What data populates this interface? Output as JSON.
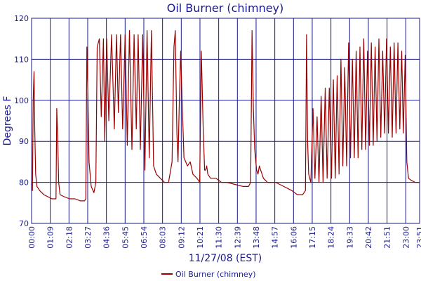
{
  "chart_data": {
    "type": "line",
    "title": "Oil Burner (chimney)",
    "xlabel": "11/27/08 (EST)",
    "ylabel": "Degrees F",
    "ylim": [
      70,
      120
    ],
    "yticks": [
      70,
      80,
      90,
      100,
      110,
      120
    ],
    "xlim_minutes": [
      0,
      1431
    ],
    "xticks": [
      "00:00",
      "01:09",
      "02:18",
      "03:27",
      "04:36",
      "05:45",
      "06:54",
      "08:03",
      "09:12",
      "10:21",
      "11:30",
      "12:39",
      "13:48",
      "14:57",
      "16:06",
      "17:15",
      "18:24",
      "19:33",
      "20:42",
      "21:51",
      "23:00",
      "23:51"
    ],
    "grid": true,
    "legend": "bottom-center",
    "series": [
      {
        "name": "Oil Burner (chimney)",
        "color": "#990000",
        "points": [
          [
            "00:00",
            80
          ],
          [
            "00:03",
            78
          ],
          [
            "00:06",
            100
          ],
          [
            "00:09",
            107
          ],
          [
            "00:11",
            95
          ],
          [
            "00:15",
            82
          ],
          [
            "00:20",
            79
          ],
          [
            "00:30",
            78
          ],
          [
            "00:45",
            77
          ],
          [
            "01:00",
            76.5
          ],
          [
            "01:15",
            76
          ],
          [
            "01:25",
            76
          ],
          [
            "01:30",
            76
          ],
          [
            "01:33",
            98
          ],
          [
            "01:36",
            92
          ],
          [
            "01:40",
            80
          ],
          [
            "01:45",
            77
          ],
          [
            "02:00",
            76.5
          ],
          [
            "02:20",
            76
          ],
          [
            "02:40",
            76
          ],
          [
            "03:00",
            75.5
          ],
          [
            "03:15",
            75.5
          ],
          [
            "03:20",
            76
          ],
          [
            "03:24",
            113
          ],
          [
            "03:28",
            100
          ],
          [
            "03:32",
            85
          ],
          [
            "03:40",
            79
          ],
          [
            "03:50",
            77.5
          ],
          [
            "03:57",
            80
          ],
          [
            "04:02",
            113
          ],
          [
            "04:10",
            115
          ],
          [
            "04:17",
            96
          ],
          [
            "04:25",
            115
          ],
          [
            "04:30",
            90
          ],
          [
            "04:37",
            115
          ],
          [
            "04:45",
            95
          ],
          [
            "04:55",
            116
          ],
          [
            "05:05",
            93
          ],
          [
            "05:13",
            116
          ],
          [
            "05:20",
            97
          ],
          [
            "05:28",
            116
          ],
          [
            "05:36",
            93
          ],
          [
            "05:45",
            116
          ],
          [
            "05:53",
            89
          ],
          [
            "06:01",
            117
          ],
          [
            "06:10",
            88
          ],
          [
            "06:18",
            116
          ],
          [
            "06:26",
            93
          ],
          [
            "06:33",
            116
          ],
          [
            "06:41",
            88
          ],
          [
            "06:50",
            116
          ],
          [
            "06:58",
            83
          ],
          [
            "07:06",
            117
          ],
          [
            "07:14",
            86
          ],
          [
            "07:22",
            117
          ],
          [
            "07:30",
            84
          ],
          [
            "07:40",
            82
          ],
          [
            "07:55",
            81
          ],
          [
            "08:10",
            80
          ],
          [
            "08:25",
            80
          ],
          [
            "08:38",
            85
          ],
          [
            "08:45",
            113
          ],
          [
            "08:50",
            117
          ],
          [
            "08:56",
            92
          ],
          [
            "09:00",
            85
          ],
          [
            "09:05",
            100
          ],
          [
            "09:10",
            112
          ],
          [
            "09:15",
            100
          ],
          [
            "09:22",
            86
          ],
          [
            "09:35",
            84
          ],
          [
            "09:45",
            85
          ],
          [
            "09:55",
            82
          ],
          [
            "10:10",
            81
          ],
          [
            "10:20",
            80
          ],
          [
            "10:26",
            112
          ],
          [
            "10:33",
            93
          ],
          [
            "10:38",
            83
          ],
          [
            "10:42",
            83
          ],
          [
            "10:46",
            84
          ],
          [
            "10:50",
            82
          ],
          [
            "11:00",
            81
          ],
          [
            "11:20",
            81
          ],
          [
            "11:40",
            80
          ],
          [
            "12:00",
            80
          ],
          [
            "12:30",
            79.5
          ],
          [
            "13:00",
            79
          ],
          [
            "13:20",
            79
          ],
          [
            "13:28",
            80
          ],
          [
            "13:33",
            117
          ],
          [
            "13:38",
            98
          ],
          [
            "13:43",
            88
          ],
          [
            "13:50",
            83
          ],
          [
            "13:55",
            82
          ],
          [
            "14:00",
            84
          ],
          [
            "14:05",
            83
          ],
          [
            "14:15",
            81
          ],
          [
            "14:30",
            80
          ],
          [
            "15:00",
            80
          ],
          [
            "15:30",
            79
          ],
          [
            "16:00",
            78
          ],
          [
            "16:20",
            77
          ],
          [
            "16:40",
            77
          ],
          [
            "16:50",
            78
          ],
          [
            "16:54",
            116
          ],
          [
            "16:58",
            90
          ],
          [
            "17:02",
            82
          ],
          [
            "17:10",
            80
          ],
          [
            "17:18",
            98
          ],
          [
            "17:25",
            81
          ],
          [
            "17:33",
            96
          ],
          [
            "17:40",
            80
          ],
          [
            "17:48",
            101
          ],
          [
            "17:55",
            80
          ],
          [
            "18:03",
            103
          ],
          [
            "18:10",
            81
          ],
          [
            "18:18",
            103
          ],
          [
            "18:26",
            81
          ],
          [
            "18:33",
            105
          ],
          [
            "18:40",
            81
          ],
          [
            "18:47",
            106
          ],
          [
            "18:54",
            82
          ],
          [
            "19:01",
            110
          ],
          [
            "19:08",
            84
          ],
          [
            "19:15",
            108
          ],
          [
            "19:22",
            84
          ],
          [
            "19:29",
            114
          ],
          [
            "19:36",
            86
          ],
          [
            "19:43",
            110
          ],
          [
            "19:50",
            86
          ],
          [
            "19:57",
            112
          ],
          [
            "20:04",
            86
          ],
          [
            "20:11",
            113
          ],
          [
            "20:18",
            88
          ],
          [
            "20:25",
            115
          ],
          [
            "20:32",
            88
          ],
          [
            "20:39",
            112
          ],
          [
            "20:46",
            89
          ],
          [
            "20:53",
            114
          ],
          [
            "21:00",
            89
          ],
          [
            "21:07",
            113
          ],
          [
            "21:14",
            90
          ],
          [
            "21:21",
            115
          ],
          [
            "21:28",
            91
          ],
          [
            "21:35",
            112
          ],
          [
            "21:42",
            92
          ],
          [
            "21:49",
            115
          ],
          [
            "21:56",
            92
          ],
          [
            "22:03",
            113
          ],
          [
            "22:10",
            91
          ],
          [
            "22:17",
            114
          ],
          [
            "22:24",
            92
          ],
          [
            "22:31",
            114
          ],
          [
            "22:38",
            93
          ],
          [
            "22:45",
            112
          ],
          [
            "22:51",
            92
          ],
          [
            "22:58",
            111
          ],
          [
            "23:04",
            85
          ],
          [
            "23:10",
            81
          ],
          [
            "23:20",
            80.5
          ],
          [
            "23:35",
            80
          ],
          [
            "23:51",
            80
          ]
        ]
      }
    ]
  }
}
